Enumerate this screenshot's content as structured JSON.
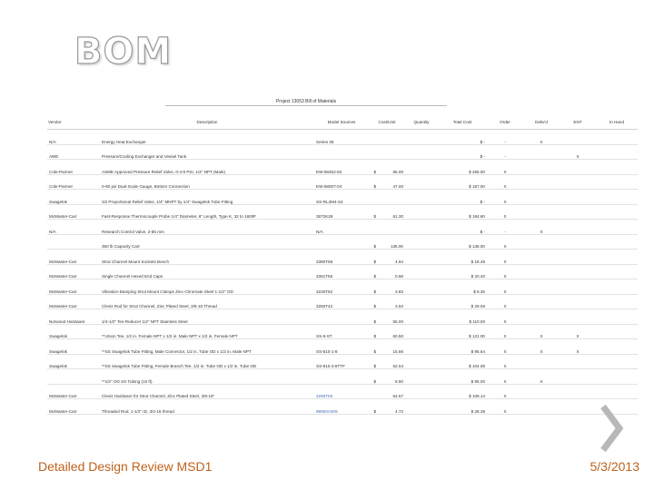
{
  "slide": {
    "title": "BOM",
    "footer_left": "Detailed Design Review MSD1",
    "footer_right": "5/3/2013",
    "chevron_icon": "chevron-right-icon",
    "accent_color": "#c0621d"
  },
  "table": {
    "caption": "Project 13053 Bill of Materials",
    "headers": {
      "vendor": "Vendor",
      "description": "Description",
      "model": "Model Sources",
      "cost": "Cost/Unit",
      "qty": "Quantity",
      "total": "Total Cost",
      "order": "Order",
      "col_h": "Deliv'd",
      "col_i": "ENT",
      "col_j": "In Hand"
    },
    "rows": [
      {
        "vendor": "N/A",
        "desc": "Energy Heat Exchanger",
        "model": "Series 35",
        "cur": "",
        "cost": "",
        "qty": "",
        "total": "$ -",
        "order": "-",
        "h": "X",
        "i": "",
        "j": ""
      },
      {
        "vendor": "AWE",
        "desc": "Pressure/Cooling Exchanger and Vessel Tank",
        "model": "",
        "cur": "",
        "cost": "",
        "qty": "",
        "total": "$ -",
        "order": "-",
        "h": "",
        "i": "X",
        "j": ""
      },
      {
        "vendor": "Cole-Parmer",
        "desc": "ASME Approved Pressure Relief Valve, 0-4-9 PSI, 1/4\" NPT (Male)",
        "model": "EW-68452-62",
        "cur": "$",
        "cost": "86.00",
        "qty": "",
        "total": "$ 256.00",
        "order": "X",
        "h": "",
        "i": "",
        "j": ""
      },
      {
        "vendor": "Cole-Parmer",
        "desc": "0-60 psi Dual-Scale Gauge, Bottom Connection",
        "model": "EW-68007-04",
        "cur": "$",
        "cost": "47.00",
        "qty": "",
        "total": "$ 157.00",
        "order": "X",
        "h": "",
        "i": "",
        "j": ""
      },
      {
        "vendor": "Swagelok",
        "desc": "SS Proportional Relief Valve, 1/4\" MNPT by 1/4\" Swagelok Tube Fitting",
        "model": "SS-RL3M4-S4",
        "cur": "",
        "cost": "",
        "qty": "",
        "total": "$ -",
        "order": "X",
        "h": "",
        "i": "",
        "j": ""
      },
      {
        "vendor": "McMaster-Carr",
        "desc": "Fast-Response Thermocouple Probe 1/4\" Diameter, 6\" Length, Type K, 32 to 1600F",
        "model": "3872K28",
        "cur": "$",
        "cost": "61.30",
        "qty": "",
        "total": "$ 184.60",
        "order": "X",
        "h": "",
        "i": "",
        "j": ""
      },
      {
        "vendor": "N/A",
        "desc": "Research Control Valve, 2-85 mm",
        "model": "N/A",
        "cur": "",
        "cost": "",
        "qty": "",
        "total": "$ -",
        "order": "-",
        "h": "X",
        "i": "",
        "j": ""
      },
      {
        "vendor": "",
        "desc": "350 lb Capacity Cart",
        "model": "",
        "cur": "$",
        "cost": "135.00",
        "qty": "",
        "total": "$ 135.00",
        "order": "X",
        "h": "",
        "i": "",
        "j": ""
      },
      {
        "vendor": "McMaster-Carr",
        "desc": "Strut Channel Mount Sockets Bench",
        "model": "3380T68",
        "cur": "$",
        "cost": "4.64",
        "qty": "",
        "total": "$ 18.48",
        "order": "X",
        "h": "",
        "i": "",
        "j": ""
      },
      {
        "vendor": "McMaster-Carr",
        "desc": "Single Channel Hexed End Caps",
        "model": "3361T56",
        "cur": "$",
        "cost": "0.68",
        "qty": "",
        "total": "$ 20.40",
        "order": "X",
        "h": "",
        "i": "",
        "j": ""
      },
      {
        "vendor": "McMaster-Carr",
        "desc": "Vibration-Damping Strut Mount Clamps Zinc-Chromate Steel 1-1/2\" OD",
        "model": "3225T62",
        "cur": "$",
        "cost": "3.83",
        "qty": "",
        "total": "$ 9.36",
        "order": "X",
        "h": "",
        "i": "",
        "j": ""
      },
      {
        "vendor": "McMaster-Carr",
        "desc": "Clevis Rod for Strut Channel, Zinc Plated Steel, 3/8-16 Thread",
        "model": "3250T42",
        "cur": "$",
        "cost": "3.63",
        "qty": "",
        "total": "$ 29.06",
        "order": "X",
        "h": "",
        "i": "",
        "j": ""
      },
      {
        "vendor": "Norwood Hardware",
        "desc": "1/4-1/2\" Tee Reducer 1/2\" NPT Stainless Steel",
        "model": "",
        "cur": "$",
        "cost": "55.00",
        "qty": "",
        "total": "$ 110.00",
        "order": "X",
        "h": "",
        "i": "",
        "j": ""
      },
      {
        "vendor": "Swagelok",
        "desc": "**Union Tee, 1/2 in. Female NPT x 1/2 in. Male NPT x 1/2 in. Female NPT",
        "model": "SS-8-ST",
        "cur": "$",
        "cost": "60.50",
        "qty": "",
        "total": "$ 121.00",
        "order": "X",
        "h": "X",
        "i": "X",
        "j": ""
      },
      {
        "vendor": "Swagelok",
        "desc": "**SS Swagelok Tube Fitting, Male Connector, 1/2 in. Tube OD x 1/2 in. Male NPT",
        "model": "SS-810-1-8",
        "cur": "$",
        "cost": "15.66",
        "qty": "",
        "total": "$ 95.64",
        "order": "X",
        "h": "X",
        "i": "X",
        "j": ""
      },
      {
        "vendor": "Swagelok",
        "desc": "**SS Swagelok Tube Fitting, Female Branch Tee, 1/2 in. Tube OD x 1/2 in. Tube OD",
        "model": "SS-810-3-8TTF",
        "cur": "$",
        "cost": "52.04",
        "qty": "",
        "total": "$ 104.08",
        "order": "X",
        "h": "",
        "i": "",
        "j": ""
      },
      {
        "vendor": "",
        "desc": "**1/2\" OD SS Tubing (10 ft)",
        "model": "",
        "cur": "$",
        "cost": "8.50",
        "qty": "",
        "total": "$ 85.00",
        "order": "X",
        "h": "X",
        "i": "",
        "j": ""
      },
      {
        "vendor": "McMaster-Carr",
        "desc": "Clevis Hardware for Strut Channel, Zinc Plated Steel, 3/8-16\"",
        "model": "3259T55",
        "cur": "",
        "cost": "54.57",
        "qty": "",
        "total": "$ 109.14",
        "order": "X",
        "h": "",
        "i": "",
        "j": ""
      },
      {
        "vendor": "McMaster-Carr",
        "desc": "Threaded Rod, 1-1/2\" ID, 3/4-16 thread",
        "model": "98950A009",
        "cur": "$",
        "cost": "4.73",
        "qty": "",
        "total": "$ 28.38",
        "order": "X",
        "h": "",
        "i": "",
        "j": ""
      }
    ]
  }
}
